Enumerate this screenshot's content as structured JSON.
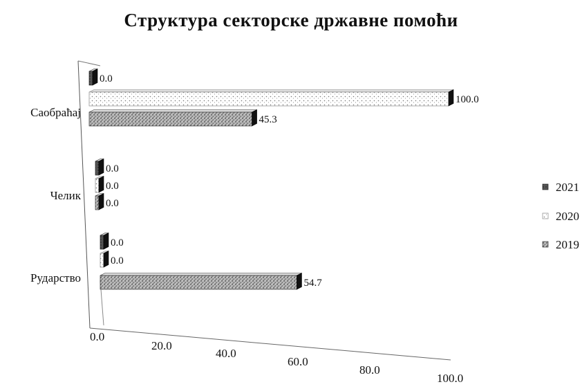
{
  "chart_data": {
    "type": "bar",
    "orientation": "horizontal",
    "title": "Структура секторске државне помоћи",
    "categories": [
      "Саобраћај",
      "Челик",
      "Рударство"
    ],
    "series": [
      {
        "name": "2021",
        "values": [
          0.0,
          0.0,
          0.0
        ],
        "labels": [
          "0.0",
          "0.0",
          "0.0"
        ]
      },
      {
        "name": "2020",
        "values": [
          100.0,
          0.0,
          0.0
        ],
        "labels": [
          "100.0",
          "0.0",
          "0.0"
        ]
      },
      {
        "name": "2019",
        "values": [
          45.3,
          0.0,
          54.7
        ],
        "labels": [
          "45.3",
          "0.0",
          "54.7"
        ]
      }
    ],
    "xticks": [
      "0.0",
      "20.0",
      "40.0",
      "60.0",
      "80.0",
      "100.0"
    ],
    "xlim": [
      0,
      100
    ],
    "legend_position": "right",
    "grid": false
  }
}
